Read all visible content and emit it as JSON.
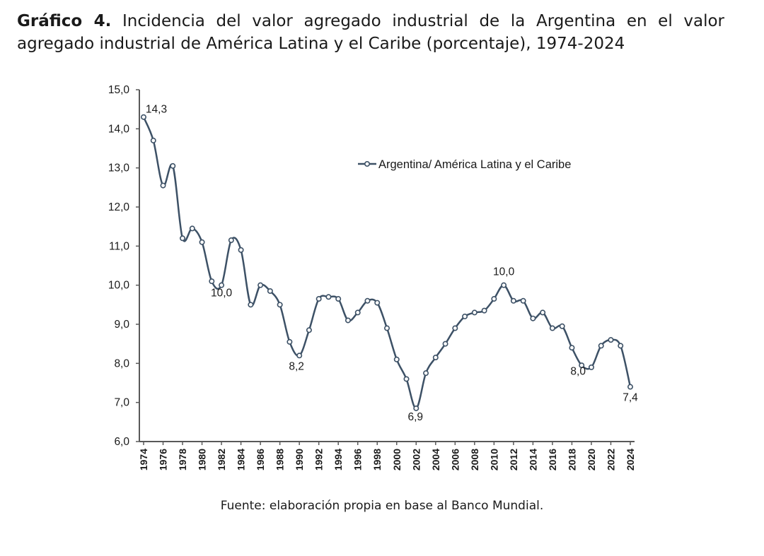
{
  "caption": {
    "label": "Gráfico 4.",
    "text": "Incidencia del valor agregado industrial de la Argentina en el valor agregado industrial de América Latina y el Caribe (porcentaje), 1974-2024"
  },
  "source": "Fuente: elaboración propia en base al Banco Mundial.",
  "colors": {
    "line": "#3d5166",
    "marker_fill": "#ffffff",
    "axis": "#595959",
    "text": "#1a1a1a"
  },
  "chart_data": {
    "type": "line",
    "title": "",
    "xlabel": "",
    "ylabel": "",
    "ylim": [
      6.0,
      15.0
    ],
    "y_ticks": [
      "15,0",
      "14,0",
      "13,0",
      "12,0",
      "11,0",
      "10,0",
      "9,0",
      "8,0",
      "7,0",
      "6,0"
    ],
    "y_tick_values": [
      15,
      14,
      13,
      12,
      11,
      10,
      9,
      8,
      7,
      6
    ],
    "x_tick_labels": [
      "1974",
      "1976",
      "1978",
      "1980",
      "1982",
      "1984",
      "1986",
      "1988",
      "1990",
      "1992",
      "1994",
      "1996",
      "1998",
      "2000",
      "2002",
      "2004",
      "2006",
      "2008",
      "2010",
      "2012",
      "2014",
      "2016",
      "2018",
      "2020",
      "2022",
      "2024"
    ],
    "legend": {
      "position": "top-right",
      "label": "Argentina/ América Latina y el Caribe"
    },
    "series": [
      {
        "name": "Argentina/ América Latina y el Caribe",
        "x": [
          1974,
          1975,
          1976,
          1977,
          1978,
          1979,
          1980,
          1981,
          1982,
          1983,
          1984,
          1985,
          1986,
          1987,
          1988,
          1989,
          1990,
          1991,
          1992,
          1993,
          1994,
          1995,
          1996,
          1997,
          1998,
          1999,
          2000,
          2001,
          2002,
          2003,
          2004,
          2005,
          2006,
          2007,
          2008,
          2009,
          2010,
          2011,
          2012,
          2013,
          2014,
          2015,
          2016,
          2017,
          2018,
          2019,
          2020,
          2021,
          2022,
          2023,
          2024
        ],
        "values": [
          14.3,
          13.7,
          12.55,
          13.05,
          11.2,
          11.45,
          11.1,
          10.1,
          10.0,
          11.15,
          10.9,
          9.5,
          10.0,
          9.85,
          9.5,
          8.55,
          8.2,
          8.85,
          9.65,
          9.7,
          9.65,
          9.1,
          9.3,
          9.6,
          9.55,
          8.9,
          8.1,
          7.6,
          6.85,
          7.75,
          8.15,
          8.5,
          8.9,
          9.2,
          9.3,
          9.35,
          9.65,
          10.0,
          9.6,
          9.6,
          9.15,
          9.3,
          8.9,
          8.95,
          8.4,
          7.95,
          7.9,
          8.45,
          8.6,
          8.45,
          7.4
        ]
      }
    ],
    "annotations": [
      {
        "year": 1974,
        "value": 14.3,
        "label": "14,3"
      },
      {
        "year": 1982,
        "value": 10.0,
        "label": "10,0"
      },
      {
        "year": 1990,
        "value": 8.2,
        "label": "8,2"
      },
      {
        "year": 2002,
        "value": 6.9,
        "label": "6,9"
      },
      {
        "year": 2011,
        "value": 10.0,
        "label": "10,0"
      },
      {
        "year": 2019,
        "value": 8.0,
        "label": "8,0"
      },
      {
        "year": 2024,
        "value": 7.4,
        "label": "7,4"
      }
    ]
  }
}
